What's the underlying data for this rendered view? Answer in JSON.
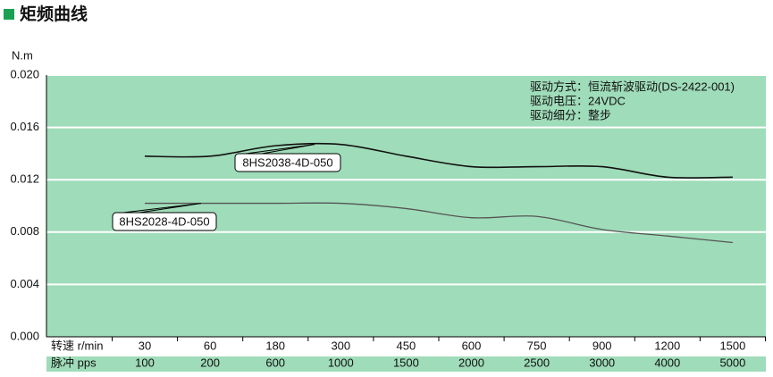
{
  "title": "矩频曲线",
  "chart_data": {
    "type": "line",
    "y_label": "N.m",
    "row_labels": [
      "转速 r/min",
      "脉冲 pps"
    ],
    "categories": [
      30,
      60,
      180,
      300,
      450,
      600,
      750,
      900,
      1200,
      1500
    ],
    "pps": [
      100,
      200,
      600,
      1000,
      1500,
      2000,
      2500,
      3000,
      4000,
      5000
    ],
    "ylim": [
      0,
      0.02
    ],
    "yticks": [
      {
        "value": 0,
        "label": "0.000"
      },
      {
        "value": 0.004,
        "label": "0.004"
      },
      {
        "value": 0.008,
        "label": "0.008"
      },
      {
        "value": 0.012,
        "label": "0.012"
      },
      {
        "value": 0.016,
        "label": "0.016"
      },
      {
        "value": 0.02,
        "label": "0.020"
      }
    ],
    "grid": true,
    "background": "#9fdcb9",
    "annotations": [
      "驱动方式：恒流斩波驱动(DS-2422-001)",
      "驱动电压：24VDC",
      "驱动细分：整步"
    ],
    "series": [
      {
        "name": "8HS2038-4D-050",
        "color": "#111111",
        "values": [
          0.0138,
          0.0138,
          0.0146,
          0.0147,
          0.0138,
          0.013,
          0.013,
          0.013,
          0.0122,
          0.0122
        ]
      },
      {
        "name": "8HS2028-4D-050",
        "color": "#555555",
        "values": [
          0.0102,
          0.0102,
          0.0102,
          0.0102,
          0.0098,
          0.0091,
          0.0092,
          0.0082,
          0.0077,
          0.0072
        ]
      }
    ]
  }
}
